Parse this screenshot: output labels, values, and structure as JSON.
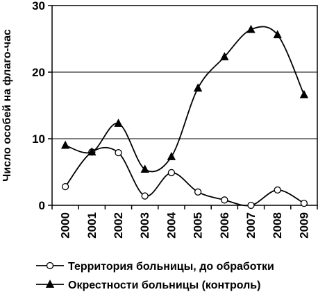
{
  "chart_data": {
    "type": "line",
    "title": "",
    "xlabel": "",
    "ylabel": "Число особей на флаго-час",
    "ylim": [
      0,
      30
    ],
    "yticks": [
      0,
      10,
      20,
      30
    ],
    "grid": "horizontal",
    "legend_position": "bottom",
    "categories": [
      "2000",
      "2001",
      "2002",
      "2003",
      "2004",
      "2005",
      "2006",
      "2007",
      "2008",
      "2009"
    ],
    "series": [
      {
        "name": "Территория больницы, до обработки",
        "marker": "circle-open",
        "color": "#000000",
        "values": [
          2.8,
          8.0,
          7.9,
          1.4,
          4.9,
          2.0,
          0.8,
          0.0,
          2.3,
          0.3
        ]
      },
      {
        "name": "Окрестности больницы (контроль)",
        "marker": "triangle-filled",
        "color": "#000000",
        "values": [
          9.0,
          8.0,
          12.3,
          5.4,
          7.3,
          17.6,
          22.3,
          26.4,
          25.6,
          16.6
        ]
      }
    ]
  }
}
